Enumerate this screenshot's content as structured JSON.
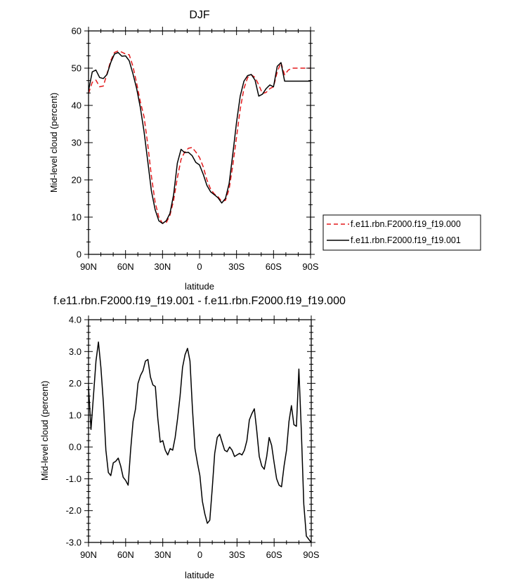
{
  "chart_data": [
    {
      "type": "line",
      "title": "DJF",
      "xlabel": "latitude",
      "ylabel": "Mid-level cloud (percent)",
      "xlim": [
        90,
        -90
      ],
      "ylim": [
        0,
        60
      ],
      "x_ticks": [
        90,
        60,
        30,
        0,
        -30,
        -60,
        -90
      ],
      "x_tick_labels": [
        "90N",
        "60N",
        "30N",
        "0",
        "30S",
        "60S",
        "90S"
      ],
      "y_ticks": [
        0,
        10,
        20,
        30,
        40,
        50,
        60
      ],
      "y_tick_labels": [
        "0",
        "10",
        "20",
        "30",
        "40",
        "50",
        "60"
      ],
      "grid": false,
      "legend_position": "right",
      "series": [
        {
          "name": "f.e11.rbn.F2000.f19_f19.000",
          "color": "#e31a1c",
          "dash": "dashed",
          "x": [
            90,
            87,
            84,
            81,
            78,
            75,
            72,
            69,
            66,
            63,
            60,
            57,
            54,
            51,
            48,
            45,
            42,
            39,
            36,
            33,
            30,
            27,
            24,
            21,
            18,
            15,
            12,
            9,
            6,
            3,
            0,
            -3,
            -6,
            -9,
            -12,
            -15,
            -18,
            -21,
            -24,
            -27,
            -30,
            -33,
            -36,
            -39,
            -42,
            -45,
            -48,
            -51,
            -54,
            -57,
            -60,
            -63,
            -66,
            -69,
            -72,
            -75,
            -78,
            -81,
            -84,
            -87,
            -90
          ],
          "y": [
            43.2,
            46.2,
            46.8,
            45.0,
            45.2,
            48.5,
            52.0,
            54.2,
            54.6,
            54.3,
            53.8,
            53.6,
            50.5,
            46.0,
            41.0,
            37.0,
            29.5,
            21.0,
            14.0,
            10.0,
            8.3,
            8.5,
            10.5,
            14.5,
            20.5,
            25.5,
            27.5,
            28.5,
            28.7,
            27.5,
            26.0,
            23.5,
            20.0,
            17.5,
            16.2,
            15.5,
            14.2,
            14.5,
            17.5,
            24.0,
            31.5,
            39.0,
            44.5,
            47.5,
            48.2,
            47.5,
            45.5,
            43.2,
            43.5,
            44.5,
            45.0,
            49.0,
            51.5,
            48.2,
            49.5,
            50.0,
            50.0,
            50.0,
            50.0,
            50.0,
            50.0
          ]
        },
        {
          "name": "f.e11.rbn.F2000.f19_f19.001",
          "color": "#000000",
          "dash": "solid",
          "x": [
            90,
            87,
            84,
            81,
            78,
            75,
            72,
            69,
            66,
            63,
            60,
            57,
            54,
            51,
            48,
            45,
            42,
            39,
            36,
            33,
            30,
            27,
            24,
            21,
            18,
            15,
            12,
            9,
            6,
            3,
            0,
            -3,
            -6,
            -9,
            -12,
            -15,
            -18,
            -21,
            -24,
            -27,
            -30,
            -33,
            -36,
            -39,
            -42,
            -45,
            -48,
            -51,
            -54,
            -57,
            -60,
            -63,
            -66,
            -69,
            -72,
            -75,
            -78,
            -81,
            -84,
            -87,
            -90
          ],
          "y": [
            44.0,
            49.0,
            49.5,
            47.5,
            47.2,
            48.3,
            51.5,
            53.8,
            54.2,
            53.2,
            53.3,
            52.0,
            48.5,
            44.5,
            39.5,
            33.0,
            25.0,
            17.0,
            12.0,
            9.0,
            8.3,
            9.0,
            11.0,
            16.0,
            24.5,
            28.2,
            27.3,
            27.4,
            26.5,
            24.7,
            24.0,
            21.5,
            18.5,
            16.8,
            16.0,
            15.2,
            13.8,
            15.0,
            19.0,
            27.0,
            35.5,
            42.5,
            46.5,
            48.0,
            48.3,
            46.8,
            42.5,
            43.0,
            44.5,
            45.5,
            45.0,
            50.5,
            51.5,
            46.5,
            46.5,
            46.5,
            46.5,
            46.5,
            46.5,
            46.5,
            46.5
          ]
        }
      ]
    },
    {
      "type": "line",
      "title": "f.e11.rbn.F2000.f19_f19.001 - f.e11.rbn.F2000.f19_f19.000",
      "xlabel": "latitude",
      "ylabel": "Mid-level cloud (percent)",
      "xlim": [
        90,
        -90
      ],
      "ylim": [
        -3.0,
        4.0
      ],
      "x_ticks": [
        90,
        60,
        30,
        0,
        -30,
        -60,
        -90
      ],
      "x_tick_labels": [
        "90N",
        "60N",
        "30N",
        "0",
        "30S",
        "60S",
        "90S"
      ],
      "y_ticks": [
        -3,
        -2,
        -1,
        0,
        1,
        2,
        3,
        4
      ],
      "y_tick_labels": [
        "-3.0",
        "-2.0",
        "-1.0",
        "0.0",
        "1.0",
        "2.0",
        "3.0",
        "4.0"
      ],
      "grid": false,
      "series": [
        {
          "color": "#000000",
          "dash": "solid",
          "x": [
            90,
            88,
            86,
            84,
            82,
            80,
            78,
            76,
            74,
            72,
            70,
            68,
            66,
            64,
            62,
            60,
            58,
            56,
            54,
            52,
            50,
            48,
            46,
            44,
            42,
            40,
            38,
            36,
            34,
            32,
            30,
            28,
            26,
            24,
            22,
            20,
            18,
            16,
            14,
            12,
            10,
            8,
            6,
            4,
            2,
            0,
            -2,
            -4,
            -6,
            -8,
            -10,
            -12,
            -14,
            -16,
            -18,
            -20,
            -22,
            -24,
            -26,
            -28,
            -30,
            -32,
            -34,
            -36,
            -38,
            -40,
            -42,
            -44,
            -46,
            -48,
            -50,
            -52,
            -54,
            -56,
            -58,
            -60,
            -62,
            -64,
            -66,
            -68,
            -70,
            -72,
            -74,
            -76,
            -78,
            -80,
            -82,
            -84,
            -86,
            -88,
            -90
          ],
          "y": [
            1.9,
            0.55,
            1.6,
            2.7,
            3.3,
            2.5,
            1.4,
            -0.1,
            -0.8,
            -0.9,
            -0.5,
            -0.45,
            -0.35,
            -0.6,
            -0.95,
            -1.05,
            -1.2,
            -0.1,
            0.8,
            1.2,
            2.0,
            2.25,
            2.4,
            2.7,
            2.75,
            2.2,
            1.95,
            1.9,
            0.9,
            0.15,
            0.2,
            -0.1,
            -0.25,
            -0.05,
            -0.1,
            0.3,
            0.9,
            1.6,
            2.5,
            2.9,
            3.1,
            2.7,
            1.2,
            -0.05,
            -0.5,
            -0.9,
            -1.7,
            -2.1,
            -2.4,
            -2.3,
            -1.3,
            -0.2,
            0.3,
            0.4,
            0.15,
            -0.1,
            -0.15,
            0.0,
            -0.1,
            -0.3,
            -0.25,
            -0.2,
            -0.25,
            -0.1,
            0.2,
            0.85,
            1.05,
            1.2,
            0.5,
            -0.3,
            -0.6,
            -0.7,
            -0.3,
            0.3,
            0.05,
            -0.5,
            -1.0,
            -1.2,
            -1.25,
            -0.6,
            -0.1,
            0.8,
            1.3,
            0.7,
            0.65,
            2.45,
            0.5,
            -1.8,
            -2.8,
            -2.9,
            -3.0
          ]
        }
      ]
    }
  ]
}
